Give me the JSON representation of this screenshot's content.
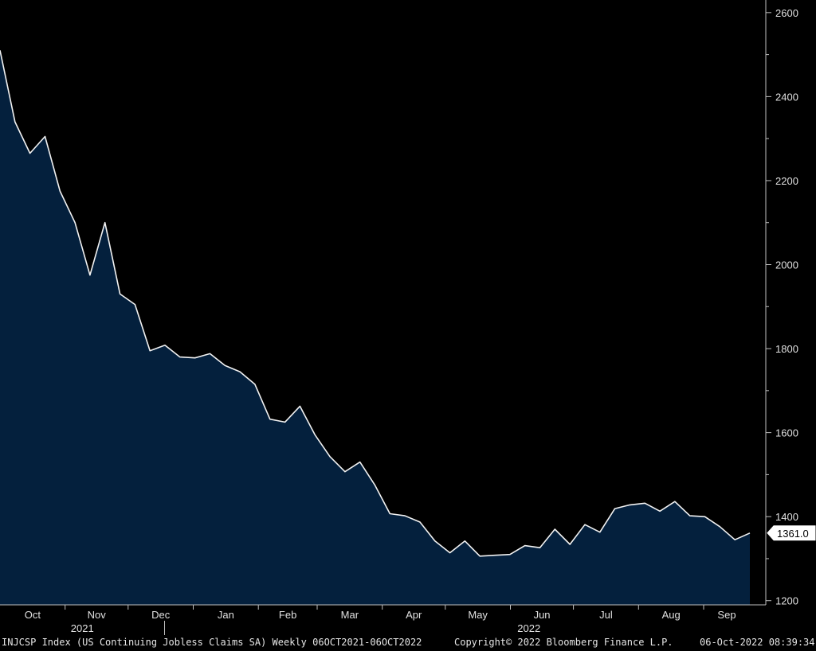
{
  "chart_data": {
    "type": "area",
    "x_start": "2021-10-01",
    "x_end": "2022-09-23",
    "values": [
      2510,
      2340,
      2265,
      2305,
      2175,
      2100,
      1975,
      2100,
      1930,
      1905,
      1795,
      1808,
      1780,
      1778,
      1788,
      1760,
      1745,
      1715,
      1632,
      1625,
      1663,
      1595,
      1543,
      1507,
      1530,
      1475,
      1407,
      1402,
      1387,
      1342,
      1314,
      1342,
      1306,
      1308,
      1310,
      1331,
      1326,
      1370,
      1334,
      1381,
      1363,
      1419,
      1428,
      1432,
      1413,
      1436,
      1402,
      1400,
      1376,
      1345,
      1361
    ],
    "ylim": [
      1190,
      2630
    ],
    "yticks": [
      "1200",
      "1400",
      "1600",
      "1800",
      "2000",
      "2200",
      "2400",
      "2600"
    ],
    "month_labels": [
      "Oct",
      "Nov",
      "Dec",
      "Jan",
      "Feb",
      "Mar",
      "Apr",
      "May",
      "Jun",
      "Jul",
      "Aug",
      "Sep"
    ],
    "year_labels": [
      "2021",
      "2022"
    ],
    "last_value_label": "1361.0",
    "colors": {
      "line": "#f2f2f2",
      "fill": "#04203d",
      "background": "#000000",
      "axis": "#bfbfbf"
    },
    "grid": false
  },
  "footer": {
    "ticker_info": "INJCSP Index (US Continuing Jobless Claims SA)  Weekly 06OCT2021-06OCT2022",
    "copyright": "Copyright© 2022 Bloomberg Finance L.P.",
    "timestamp": "06-Oct-2022 08:39:34"
  }
}
